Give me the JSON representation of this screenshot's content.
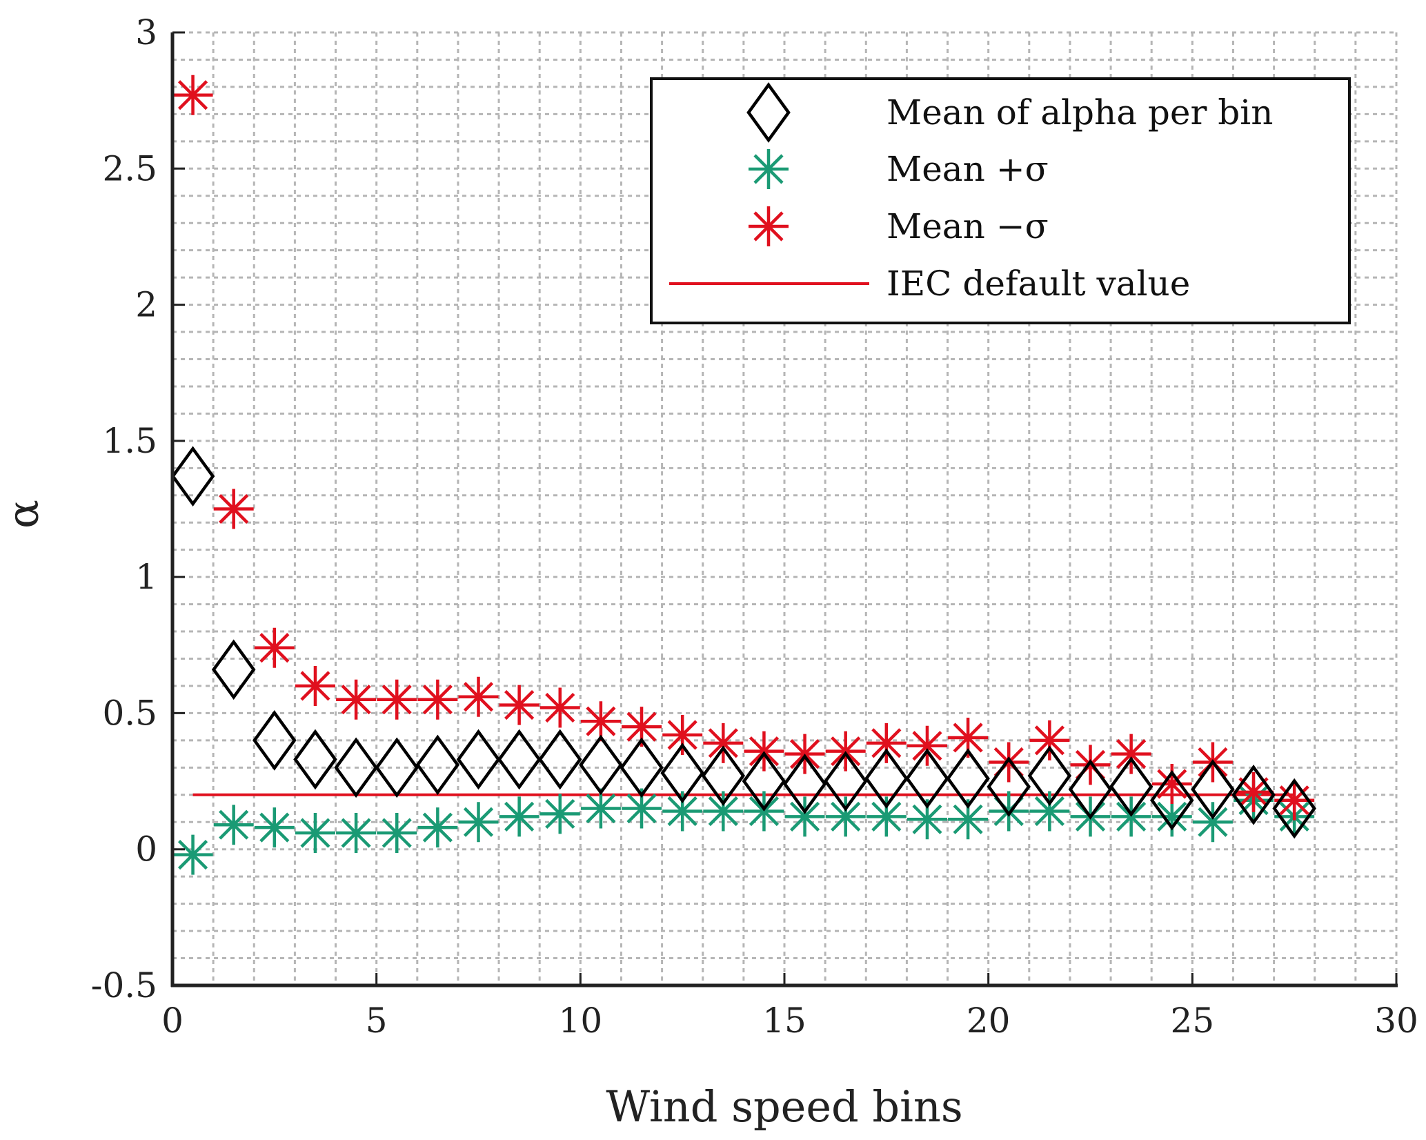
{
  "chart_data": {
    "type": "scatter",
    "title": "",
    "xlabel": "Wind speed bins",
    "ylabel": "α",
    "xlim": [
      0,
      30
    ],
    "ylim": [
      -0.5,
      3
    ],
    "xticks": [
      0,
      5,
      10,
      15,
      20,
      25,
      30
    ],
    "xtick_labels": [
      "0",
      "5",
      "10",
      "15",
      "20",
      "25",
      "30"
    ],
    "yticks": [
      -0.5,
      0,
      0.5,
      1,
      1.5,
      2,
      2.5,
      3
    ],
    "ytick_labels": [
      "-0.5",
      "0",
      "0.5",
      "1",
      "1.5",
      "2",
      "2.5",
      "3"
    ],
    "grid": true,
    "minor_grid": true,
    "legend_position": "top-right",
    "x": [
      0.5,
      1.5,
      2.5,
      3.5,
      4.5,
      5.5,
      6.5,
      7.5,
      8.5,
      9.5,
      10.5,
      11.5,
      12.5,
      13.5,
      14.5,
      15.5,
      16.5,
      17.5,
      18.5,
      19.5,
      20.5,
      21.5,
      22.5,
      23.5,
      24.5,
      25.5,
      26.5,
      27.5
    ],
    "series": [
      {
        "name": "Mean of alpha per bin",
        "legend_label": "Mean of alpha per bin",
        "marker": "diamond",
        "color": "#000000",
        "values": [
          1.37,
          0.66,
          0.4,
          0.33,
          0.3,
          0.3,
          0.31,
          0.33,
          0.33,
          0.33,
          0.31,
          0.3,
          0.28,
          0.27,
          0.25,
          0.24,
          0.25,
          0.26,
          0.26,
          0.26,
          0.23,
          0.27,
          0.22,
          0.23,
          0.18,
          0.22,
          0.2,
          0.15
        ]
      },
      {
        "name": "Mean +σ",
        "legend_label": "Mean +σ",
        "marker": "asterisk",
        "color": "#1a9a74",
        "values": [
          -0.02,
          0.09,
          0.08,
          0.06,
          0.06,
          0.06,
          0.08,
          0.1,
          0.12,
          0.13,
          0.15,
          0.15,
          0.14,
          0.14,
          0.14,
          0.12,
          0.12,
          0.12,
          0.11,
          0.11,
          0.14,
          0.14,
          0.12,
          0.12,
          0.12,
          0.1,
          0.18,
          0.12
        ]
      },
      {
        "name": "Mean −σ",
        "legend_label": "Mean −σ",
        "marker": "asterisk",
        "color": "#e0101e",
        "values": [
          2.77,
          1.25,
          0.74,
          0.6,
          0.55,
          0.55,
          0.55,
          0.56,
          0.53,
          0.52,
          0.47,
          0.45,
          0.42,
          0.39,
          0.36,
          0.35,
          0.36,
          0.39,
          0.38,
          0.41,
          0.32,
          0.4,
          0.31,
          0.35,
          0.24,
          0.32,
          0.21,
          0.18
        ]
      },
      {
        "name": "IEC default value",
        "legend_label": "IEC default value",
        "marker": "line",
        "color": "#e0101e",
        "x_range": [
          0.5,
          27.5
        ],
        "value": 0.2
      }
    ]
  }
}
